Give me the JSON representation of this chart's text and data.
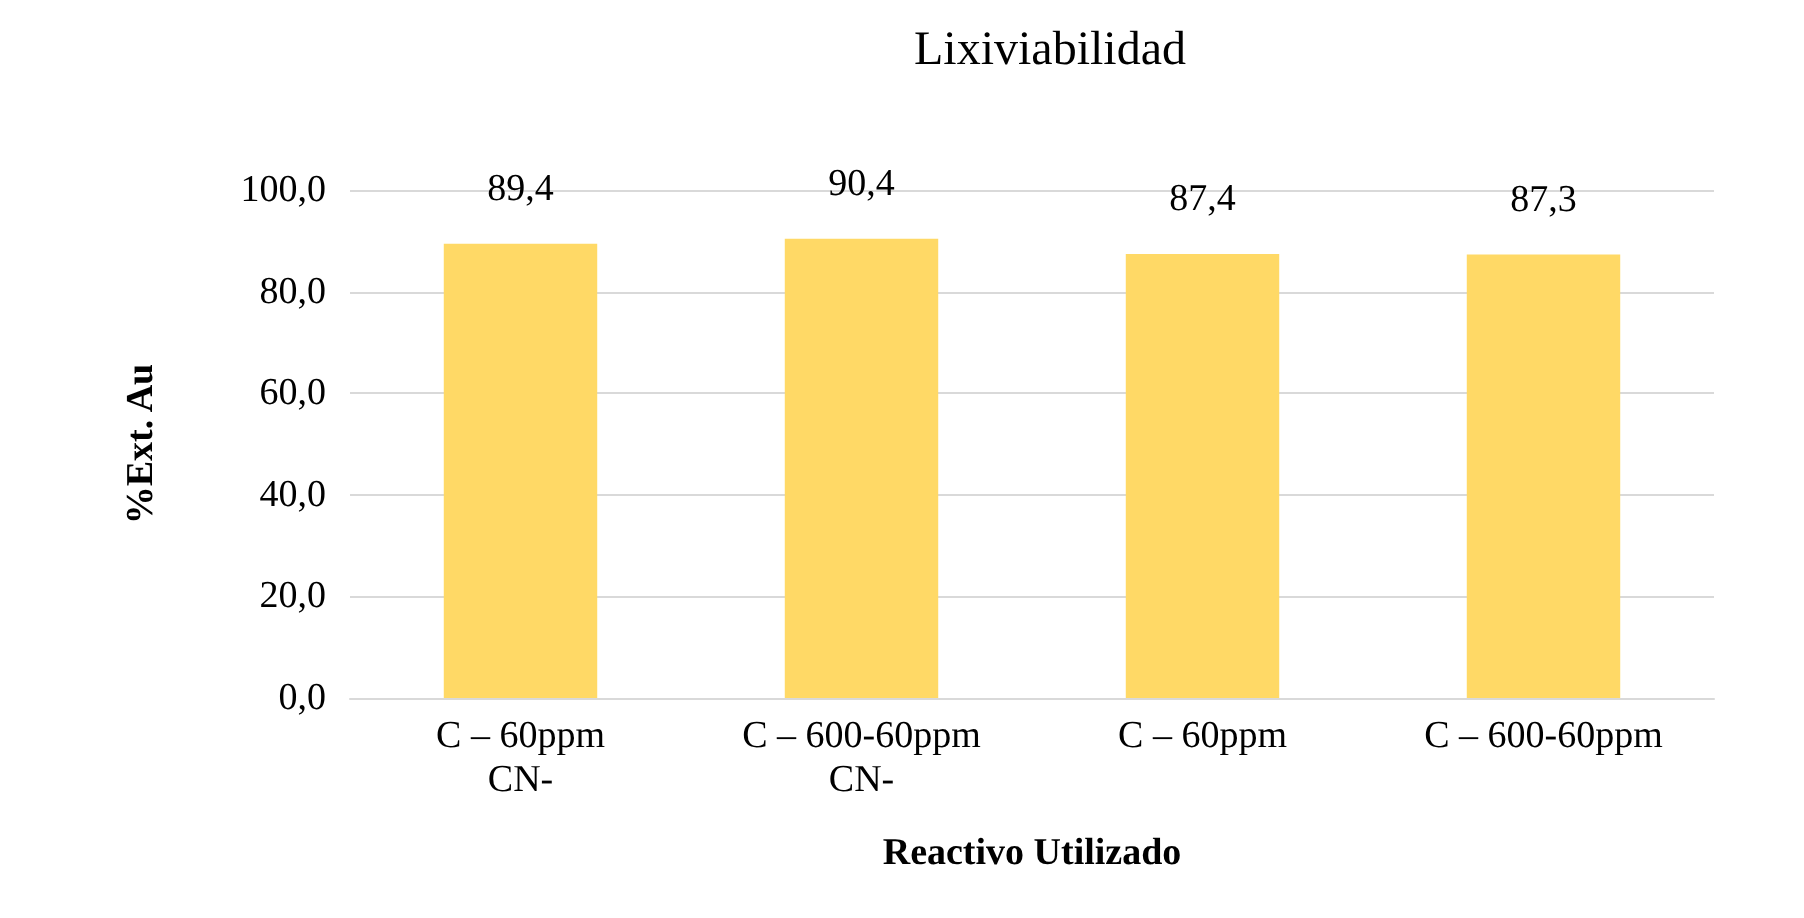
{
  "chart_data": {
    "type": "bar",
    "title": "Lixiviabilidad",
    "xlabel": "Reactivo Utilizado",
    "ylabel": "%Ext. Au",
    "categories": [
      "C – 60ppm\nCN-",
      "C – 600-60ppm\nCN-",
      "C – 60ppm",
      "C – 600-60ppm"
    ],
    "values": [
      89.4,
      90.4,
      87.4,
      87.3
    ],
    "value_labels": [
      "89,4",
      "90,4",
      "87,4",
      "87,3"
    ],
    "color": "#ffd966",
    "ylim": [
      0,
      100
    ],
    "yticks": [
      {
        "value": 0,
        "label": "0,0"
      },
      {
        "value": 20,
        "label": "20,0"
      },
      {
        "value": 40,
        "label": "40,0"
      },
      {
        "value": 60,
        "label": "60,0"
      },
      {
        "value": 80,
        "label": "80,0"
      },
      {
        "value": 100,
        "label": "100,0"
      }
    ],
    "grid": "y"
  }
}
